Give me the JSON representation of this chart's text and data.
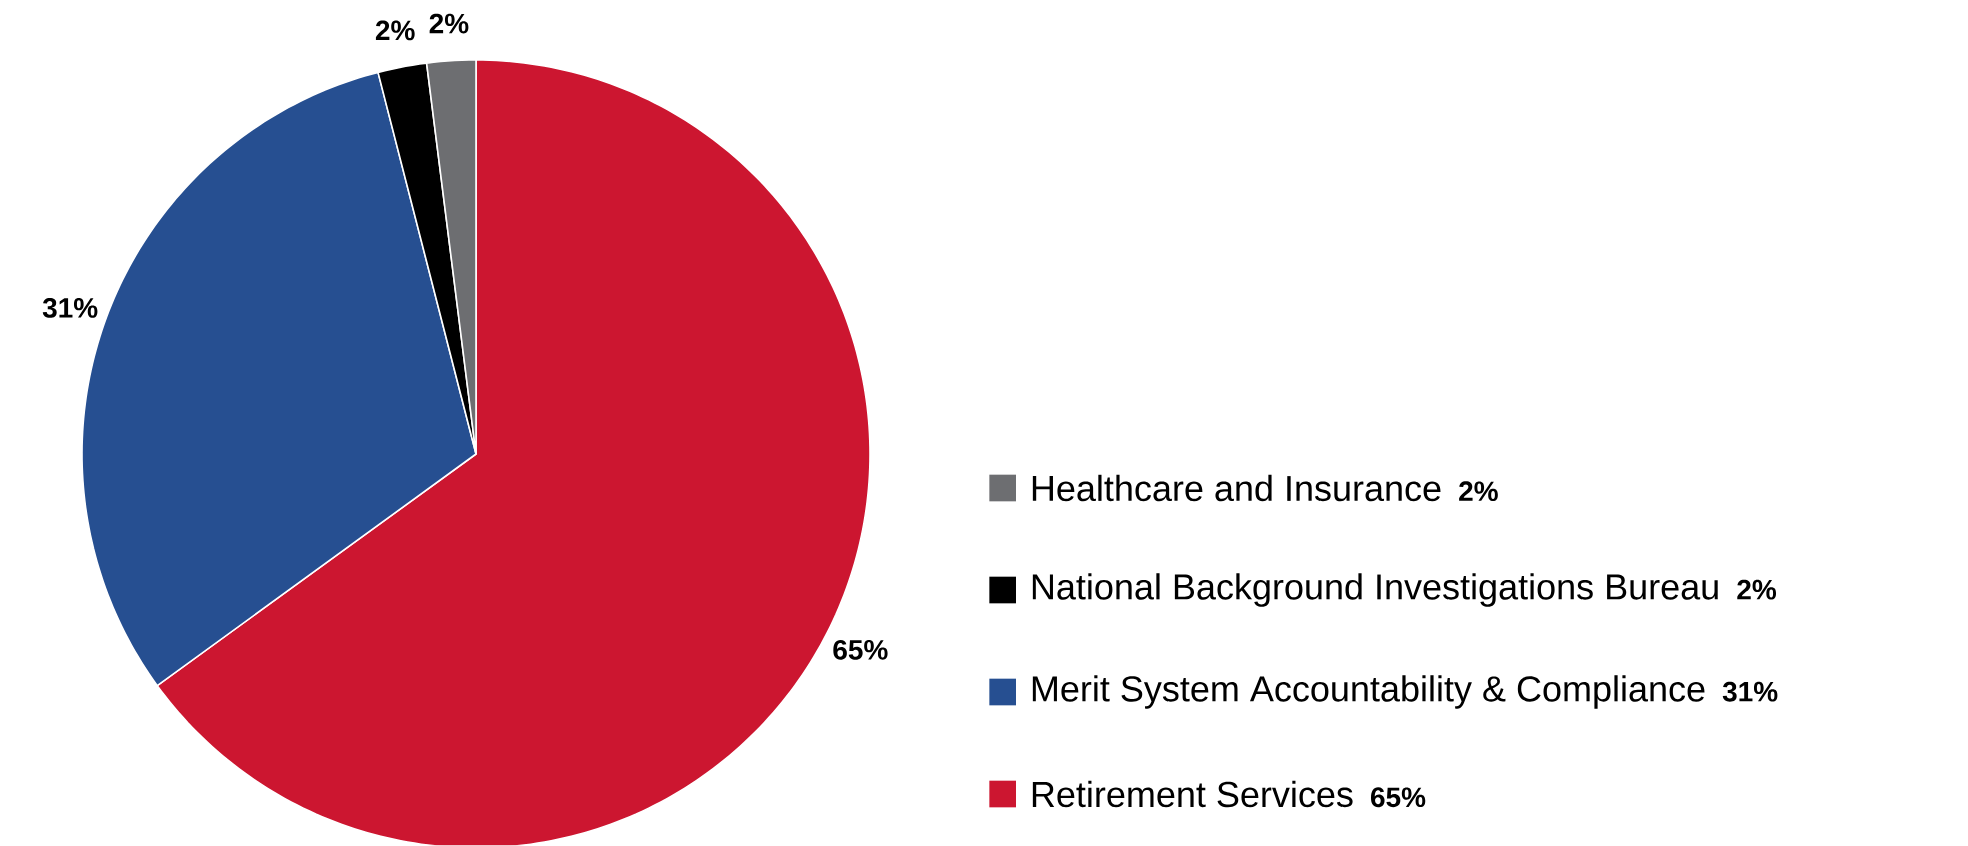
{
  "chart_data": {
    "type": "pie",
    "categories": [
      "Retirement Services",
      "Merit System Accountability & Compliance",
      "National Background Investigations Bureau",
      "Healthcare and Insurance"
    ],
    "values": [
      65,
      31,
      2,
      2
    ],
    "colors": [
      "#cc1630",
      "#264f91",
      "#000000",
      "#6d6e71"
    ],
    "value_labels": [
      "65%",
      "31%",
      "2%",
      "2%"
    ],
    "legend": "right"
  }
}
